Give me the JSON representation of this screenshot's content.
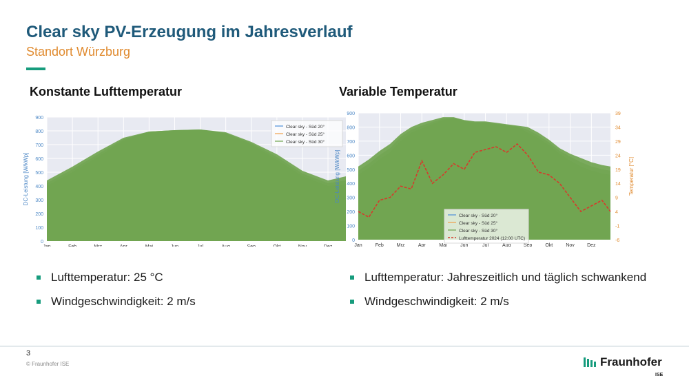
{
  "slide": {
    "title": "Clear sky PV-Erzeugung im Jahresverlauf",
    "subtitle": "Standort Würzburg",
    "page_number": "3",
    "copyright": "© Fraunhofer ISE"
  },
  "left_section": {
    "heading": "Konstante Lufttemperatur",
    "bullets": [
      "Lufttemperatur: 25 °C",
      "Windgeschwindigkeit: 2 m/s"
    ]
  },
  "right_section": {
    "heading": "Variable Temperatur",
    "bullets": [
      "Lufttemperatur: Jahreszeitlich und täglich schwankend",
      "Windgeschwindigkeit: 2 m/s"
    ]
  },
  "logo": {
    "name": "Fraunhofer",
    "sub": "ISE"
  },
  "colors": {
    "title": "#1f5a7a",
    "subtitle": "#e08a2e",
    "accent": "#179c7d",
    "plot_background": "#e8eaf2",
    "pv_fill": "#6ea34d",
    "series_20": "#4c8ed8",
    "series_25": "#f0a04a",
    "series_30": "#6ea34d",
    "temperature": "#d63a2b",
    "temperature_axis": "#e08a2e",
    "power_axis": "#4a86c5"
  },
  "chart_data": [
    {
      "type": "area",
      "categories": [
        "Jan",
        "Feb",
        "Mrz",
        "Apr",
        "Mai",
        "Jun",
        "Jul",
        "Aug",
        "Sep",
        "Okt",
        "Nov",
        "Dez"
      ],
      "x": [
        0,
        1,
        2,
        3,
        4,
        5,
        6,
        7,
        8,
        9,
        10,
        11,
        11.7
      ],
      "ylabel": "DC-Leistung [W/kWp]",
      "ylim": [
        0,
        900
      ],
      "yticks": [
        0,
        100,
        200,
        300,
        400,
        500,
        600,
        700,
        800,
        900
      ],
      "grid": true,
      "legend_position": "top-right",
      "series": [
        {
          "name": "Clear sky - Süd 20°",
          "values": [
            400,
            500,
            610,
            730,
            795,
            805,
            810,
            780,
            700,
            590,
            470,
            400,
            410
          ]
        },
        {
          "name": "Clear sky - Süd 25°",
          "values": [
            420,
            520,
            630,
            740,
            795,
            805,
            810,
            785,
            710,
            610,
            490,
            420,
            440
          ]
        },
        {
          "name": "Clear sky - Süd 30°",
          "values": [
            440,
            540,
            650,
            750,
            795,
            805,
            810,
            790,
            720,
            630,
            510,
            440,
            470
          ]
        }
      ]
    },
    {
      "type": "area",
      "categories": [
        "Jan",
        "Feb",
        "Mrz",
        "Apr",
        "Mai",
        "Jun",
        "Jul",
        "Aug",
        "Sep",
        "Okt",
        "Nov",
        "Dez"
      ],
      "x": [
        0,
        0.5,
        1,
        1.5,
        2,
        2.5,
        3,
        3.5,
        4,
        4.5,
        5,
        5.5,
        6,
        6.5,
        7,
        7.5,
        8,
        8.5,
        9,
        9.5,
        10,
        10.5,
        11,
        11.5,
        11.9
      ],
      "ylabel": "DC-Leistung [W/kWp]",
      "y2label": "Temperatur [°C]",
      "ylim": [
        0,
        900
      ],
      "y2lim": [
        -6,
        39
      ],
      "yticks": [
        0,
        100,
        200,
        300,
        400,
        500,
        600,
        700,
        800,
        900
      ],
      "y2ticks": [
        -6,
        -1,
        4,
        9,
        14,
        19,
        24,
        29,
        34,
        39
      ],
      "grid": true,
      "legend_position": "bottom-center",
      "series": [
        {
          "name": "Clear sky - Süd 20°",
          "values": [
            460,
            510,
            570,
            620,
            700,
            760,
            790,
            820,
            850,
            860,
            840,
            830,
            830,
            820,
            810,
            800,
            760,
            720,
            670,
            610,
            560,
            520,
            490,
            470,
            460
          ]
        },
        {
          "name": "Clear sky - Süd 25°",
          "values": [
            490,
            540,
            600,
            650,
            730,
            780,
            810,
            835,
            860,
            865,
            845,
            835,
            835,
            825,
            815,
            805,
            780,
            740,
            690,
            630,
            590,
            550,
            520,
            500,
            490
          ]
        },
        {
          "name": "Clear sky - Süd 30°",
          "values": [
            520,
            570,
            630,
            680,
            750,
            800,
            830,
            850,
            870,
            870,
            850,
            840,
            840,
            830,
            820,
            810,
            800,
            760,
            710,
            650,
            610,
            580,
            550,
            530,
            520
          ]
        },
        {
          "name": "Lufttemperatur 2024 (12:00 UTC)",
          "axis": "right",
          "values": [
            4,
            2,
            8,
            9,
            13,
            12,
            22,
            14,
            17,
            21,
            19,
            25,
            26,
            27,
            25,
            28,
            24,
            18,
            17,
            14,
            9,
            4,
            6,
            8,
            4
          ]
        }
      ]
    }
  ]
}
